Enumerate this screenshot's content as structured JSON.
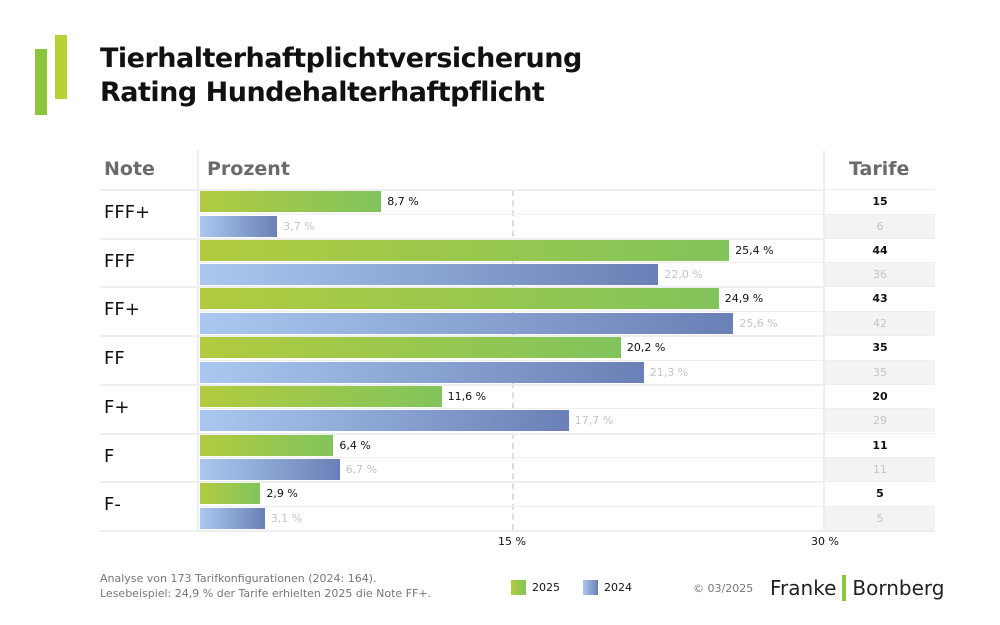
{
  "header": {
    "title_line1": "Tierhalterhaftplichtversicherung",
    "title_line2": "Rating Hundehalterhaftpflicht"
  },
  "colors": {
    "series_2025": "#94c64f",
    "series_2024": "#8aa3d4",
    "logo_green": "#8cc63f"
  },
  "chart_data": {
    "type": "bar",
    "orientation": "horizontal",
    "column_headers": {
      "note": "Note",
      "percent": "Prozent",
      "tarife": "Tarife"
    },
    "categories": [
      "FFF+",
      "FFF",
      "FF+",
      "FF",
      "F+",
      "F",
      "F-"
    ],
    "series": [
      {
        "name": "2025",
        "values": [
          8.7,
          25.4,
          24.9,
          20.2,
          11.6,
          6.4,
          2.9
        ],
        "labels": [
          "8,7 %",
          "25,4 %",
          "24,9 %",
          "20,2 %",
          "11,6 %",
          "6,4 %",
          "2,9 %"
        ],
        "tarife": [
          "15",
          "44",
          "43",
          "35",
          "20",
          "11",
          "5"
        ]
      },
      {
        "name": "2024",
        "values": [
          3.7,
          22.0,
          25.6,
          21.3,
          17.7,
          6.7,
          3.1
        ],
        "labels": [
          "3,7 %",
          "22,0 %",
          "25,6 %",
          "21,3 %",
          "17,7 %",
          "6,7 %",
          "3,1 %"
        ],
        "tarife": [
          "6",
          "36",
          "42",
          "35",
          "29",
          "11",
          "5"
        ]
      }
    ],
    "xlim": [
      0,
      30
    ],
    "ticks": [
      {
        "value": 15,
        "label": "15 %"
      },
      {
        "value": 30,
        "label": "30 %"
      }
    ],
    "legend": "bottom"
  },
  "footer": {
    "line1": "Analyse von 173 Tarifkonfigurationen (2024: 164).",
    "line2": "Lesebeispiel: 24,9 % der Tarife erhielten 2025 die Note FF+.",
    "copyright": "© 03/2025",
    "brand_left": "Franke",
    "brand_right": "Bornberg"
  }
}
